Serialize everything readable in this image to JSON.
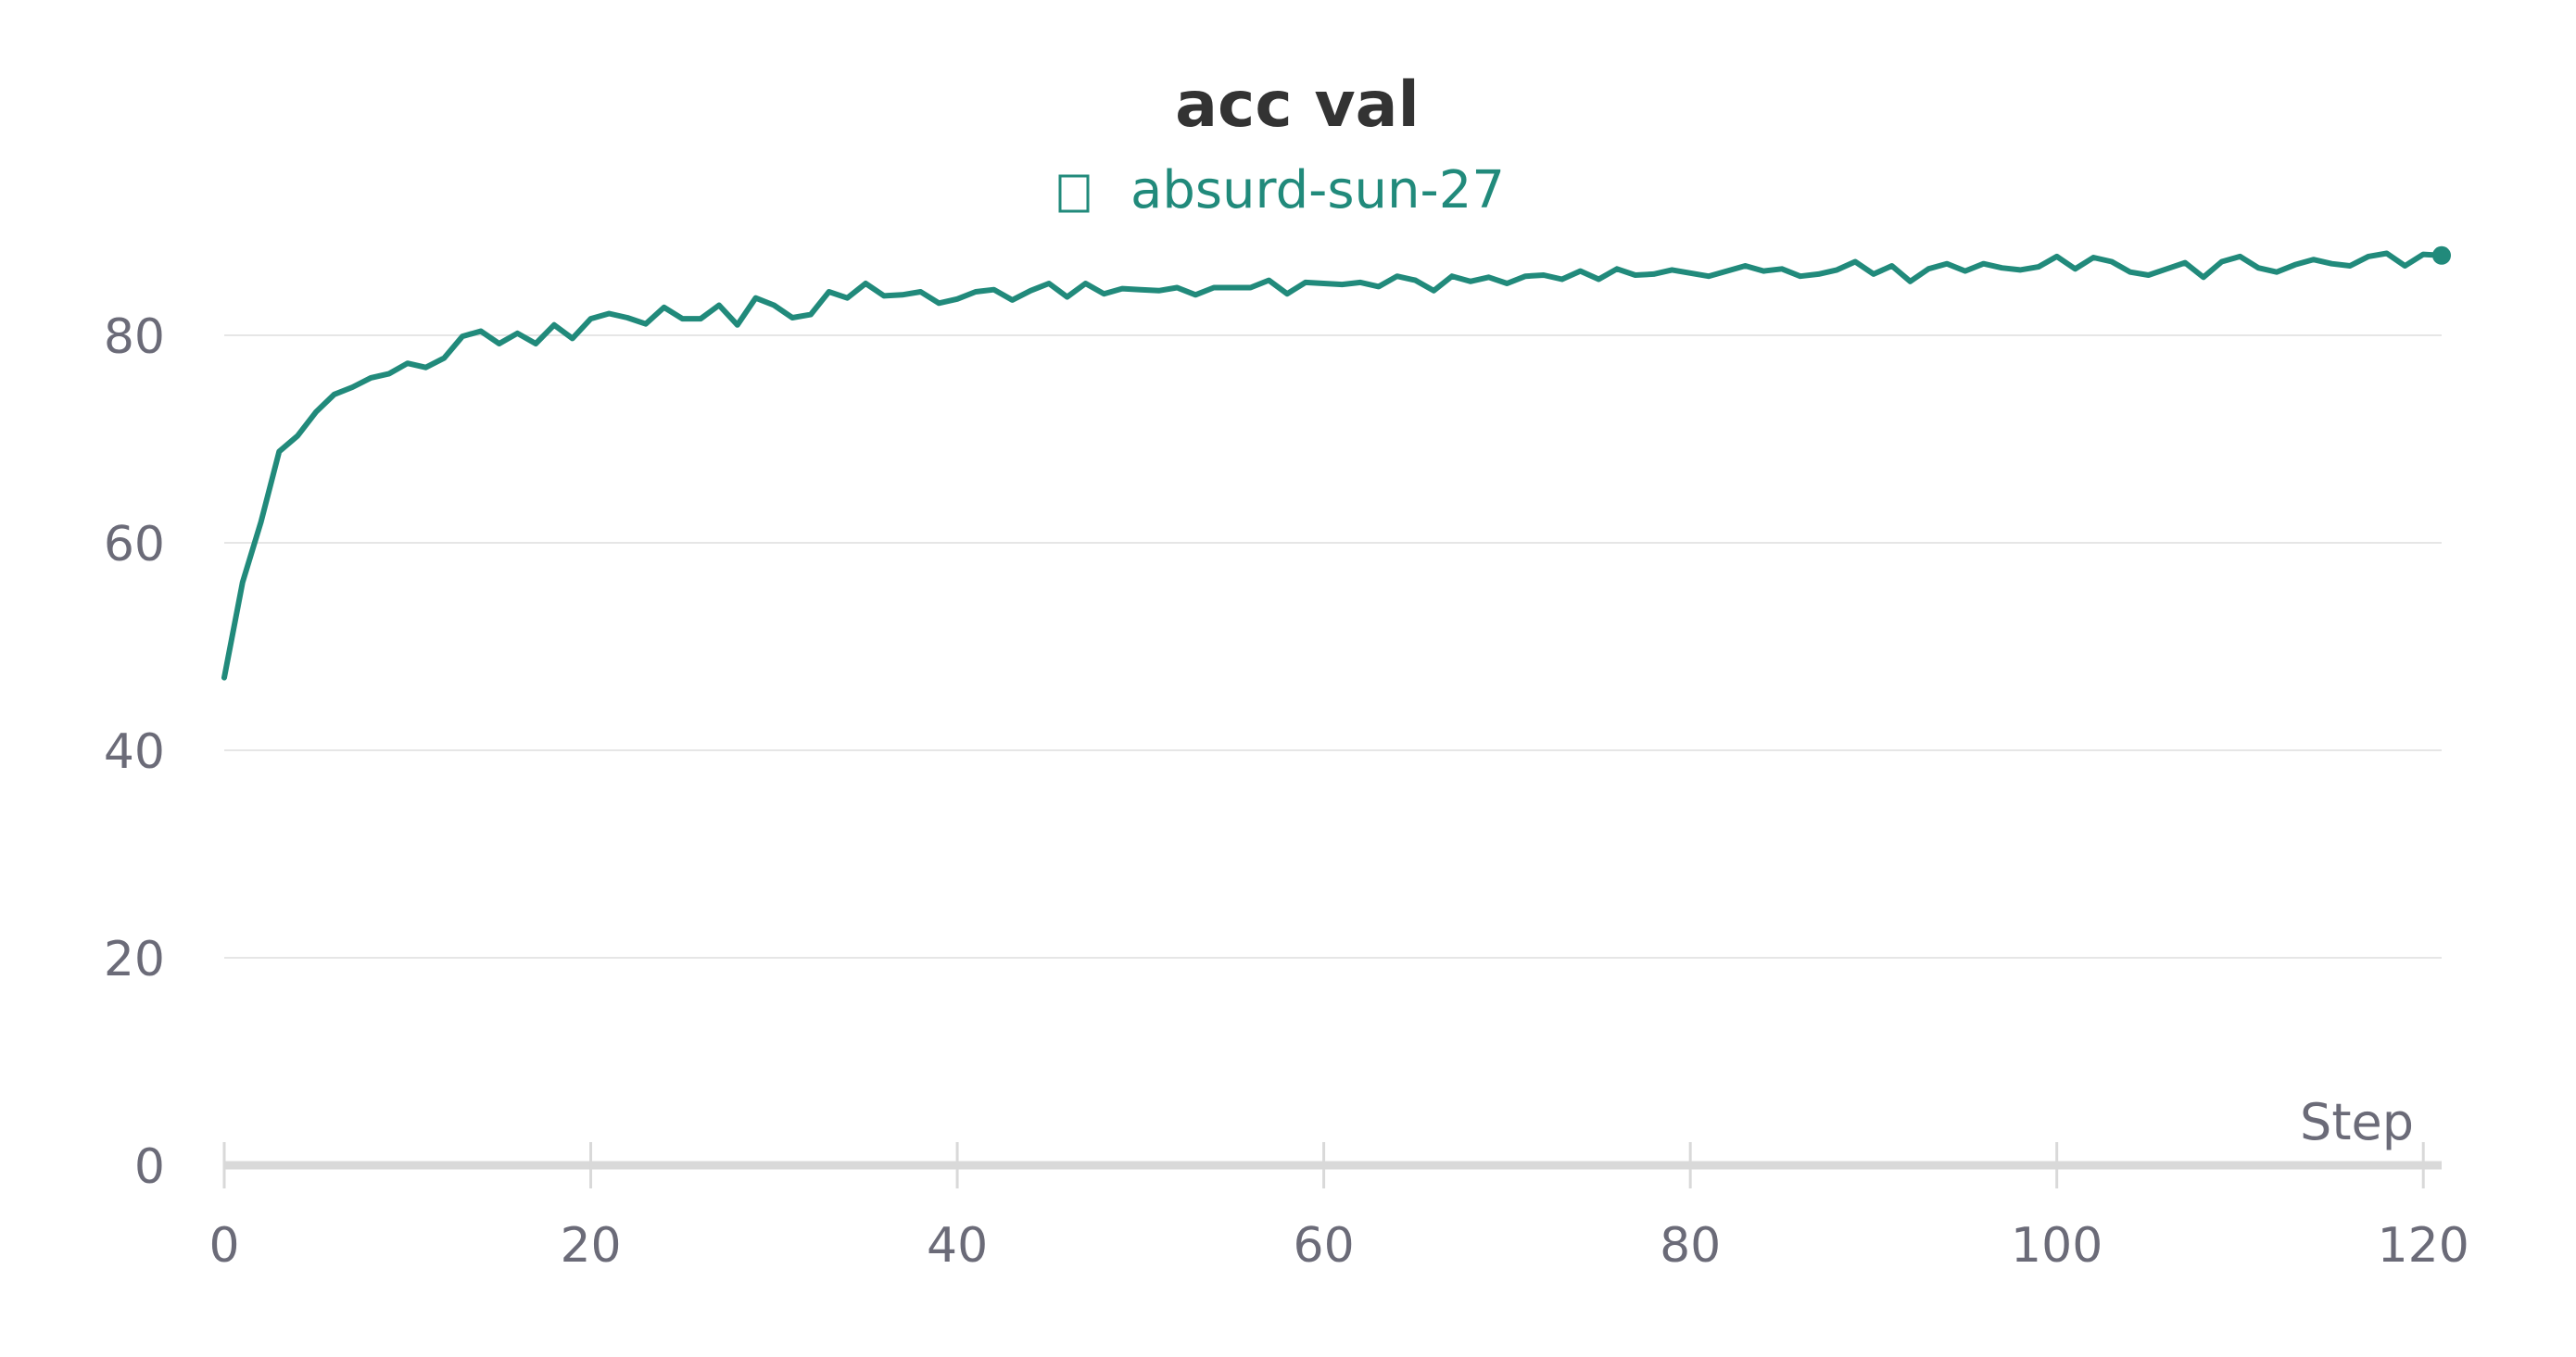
{
  "chart_data": {
    "type": "line",
    "title": "acc val",
    "legend": {
      "placement": "top-center",
      "marker": "square-outline"
    },
    "xlabel": "Step",
    "ylabel": "",
    "xlim": [
      0,
      121
    ],
    "ylim": [
      0,
      90
    ],
    "xticks": [
      0,
      20,
      40,
      60,
      80,
      100,
      120
    ],
    "yticks": [
      0,
      20,
      40,
      60,
      80
    ],
    "grid": {
      "horizontal": true,
      "vertical": false
    },
    "colors": {
      "series": "#218a7b",
      "text": "#333333",
      "tick": "#6b6b78",
      "grid": "#e6e6e6",
      "axis": "#d9d9d9"
    },
    "series": [
      {
        "name": "absurd-sun-27",
        "x": [
          0,
          1,
          2,
          3,
          4,
          5,
          6,
          7,
          8,
          9,
          10,
          11,
          12,
          13,
          14,
          15,
          16,
          17,
          18,
          19,
          20,
          21,
          22,
          23,
          24,
          25,
          26,
          27,
          28,
          29,
          30,
          31,
          32,
          33,
          34,
          35,
          36,
          37,
          38,
          39,
          40,
          41,
          42,
          43,
          44,
          45,
          46,
          47,
          48,
          49,
          50,
          51,
          52,
          53,
          54,
          55,
          56,
          57,
          58,
          59,
          60,
          61,
          62,
          63,
          64,
          65,
          66,
          67,
          68,
          69,
          70,
          71,
          72,
          73,
          74,
          75,
          76,
          77,
          78,
          79,
          80,
          81,
          82,
          83,
          84,
          85,
          86,
          87,
          88,
          89,
          90,
          91,
          92,
          93,
          94,
          95,
          96,
          97,
          98,
          99,
          100,
          101,
          102,
          103,
          104,
          105,
          106,
          107,
          108,
          109,
          110,
          111,
          112,
          113,
          114,
          115,
          116,
          117,
          118,
          119,
          120,
          121
        ],
        "values": [
          47.0,
          56.2,
          62.0,
          68.8,
          70.3,
          72.6,
          74.3,
          75.0,
          75.9,
          76.3,
          77.3,
          76.9,
          77.8,
          79.9,
          80.4,
          79.2,
          80.2,
          79.2,
          81.0,
          79.7,
          81.6,
          82.1,
          81.7,
          81.1,
          82.7,
          81.6,
          81.6,
          82.9,
          81.0,
          83.6,
          82.9,
          81.7,
          82.0,
          84.2,
          83.6,
          85.0,
          83.8,
          83.9,
          84.2,
          83.1,
          83.5,
          84.2,
          84.4,
          83.4,
          84.3,
          85.0,
          83.7,
          85.0,
          84.0,
          84.5,
          84.4,
          84.3,
          84.6,
          83.9,
          84.6,
          84.6,
          84.6,
          85.3,
          84.0,
          85.1,
          85.0,
          84.9,
          85.1,
          84.7,
          85.7,
          85.3,
          84.3,
          85.7,
          85.2,
          85.6,
          85.0,
          85.7,
          85.8,
          85.4,
          86.2,
          85.4,
          86.4,
          85.8,
          85.9,
          86.3,
          86.0,
          85.7,
          86.2,
          86.7,
          86.2,
          86.4,
          85.7,
          85.9,
          86.3,
          87.1,
          85.9,
          86.7,
          85.2,
          86.4,
          86.9,
          86.2,
          86.9,
          86.5,
          86.3,
          86.6,
          87.6,
          86.4,
          87.5,
          87.1,
          86.1,
          85.8,
          86.4,
          87.0,
          85.6,
          87.1,
          87.6,
          86.5,
          86.1,
          86.8,
          87.3,
          86.9,
          86.7,
          87.6,
          87.9,
          86.7,
          87.8,
          87.7
        ]
      }
    ]
  }
}
